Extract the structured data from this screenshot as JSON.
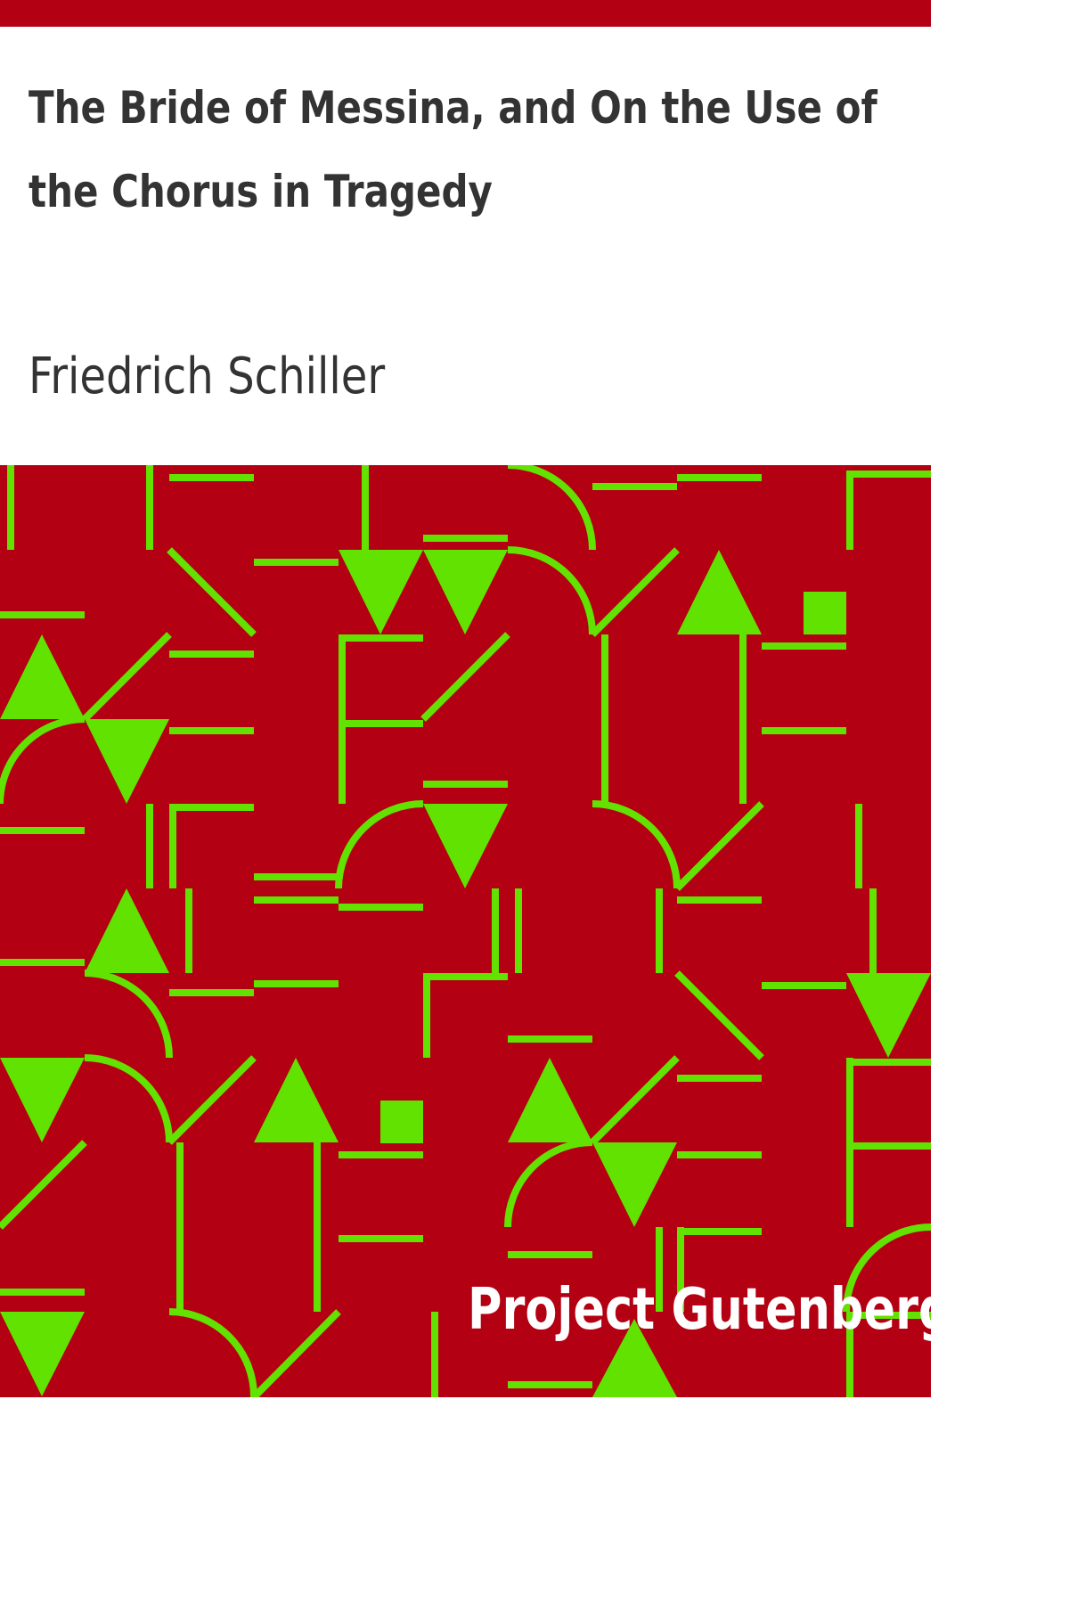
{
  "book": {
    "title": "The Bride of Messina, and On the Use of the Chorus in Tragedy",
    "author": "Friedrich Schiller",
    "publisher": "Project Gutenberg"
  },
  "colors": {
    "background": "#b30012",
    "pattern": "#62e200",
    "text": "#333333",
    "publisher_text": "#ffffff"
  }
}
